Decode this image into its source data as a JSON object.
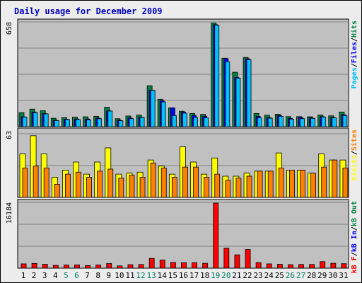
{
  "title": "Daily usage for December 2009",
  "colors": {
    "hits": "#008040",
    "files": "#0000ff",
    "pages": "#00c0ff",
    "visits": "#ffff00",
    "sites": "#ff8000",
    "kb_in": "#0000ff",
    "kb_out": "#008040",
    "kb_f": "#ff0000",
    "panel_bg": "#c0c0c0",
    "frame_bg": "#ececec",
    "day_default": "#000000",
    "day_weekend": "#00805c"
  },
  "chart_data": [
    {
      "type": "bar",
      "panel": "hits-files-pages",
      "title": "",
      "ymax_label": "658",
      "ylim": [
        0,
        658
      ],
      "legend_right": [
        "Pages",
        "/",
        "Files",
        "/",
        "Hits"
      ],
      "categories": [
        "1",
        "2",
        "3",
        "4",
        "5",
        "6",
        "7",
        "8",
        "9",
        "10",
        "11",
        "12",
        "13",
        "14",
        "15",
        "16",
        "17",
        "18",
        "19",
        "20",
        "21",
        "22",
        "23",
        "24",
        "25",
        "26",
        "27",
        "28",
        "29",
        "30",
        "31"
      ],
      "weekend_days": [
        5,
        6,
        12,
        13,
        19,
        20,
        26,
        27
      ],
      "series": [
        {
          "name": "Hits",
          "values": [
            88,
            110,
            100,
            53,
            57,
            60,
            62,
            65,
            122,
            50,
            67,
            73,
            257,
            172,
            118,
            97,
            83,
            77,
            651,
            430,
            342,
            435,
            83,
            72,
            78,
            63,
            63,
            62,
            73,
            68,
            92
          ]
        },
        {
          "name": "Files",
          "values": [
            62,
            92,
            82,
            40,
            47,
            48,
            48,
            53,
            100,
            40,
            55,
            60,
            230,
            163,
            118,
            92,
            70,
            65,
            641,
            427,
            310,
            427,
            65,
            57,
            70,
            52,
            57,
            55,
            63,
            58,
            75
          ]
        },
        {
          "name": "Pages",
          "values": [
            60,
            88,
            80,
            38,
            45,
            45,
            42,
            50,
            98,
            37,
            50,
            58,
            228,
            155,
            70,
            85,
            57,
            55,
            638,
            408,
            305,
            420,
            55,
            53,
            65,
            47,
            50,
            52,
            60,
            55,
            70
          ]
        }
      ]
    },
    {
      "type": "bar",
      "panel": "visits-sites",
      "title": "",
      "ymax_label": "63",
      "ylim": [
        0,
        63
      ],
      "legend_right": [
        "Visits",
        "/",
        "Sites"
      ],
      "categories": [
        "1",
        "2",
        "3",
        "4",
        "5",
        "6",
        "7",
        "8",
        "9",
        "10",
        "11",
        "12",
        "13",
        "14",
        "15",
        "16",
        "17",
        "18",
        "19",
        "20",
        "21",
        "22",
        "23",
        "24",
        "25",
        "26",
        "27",
        "28",
        "29",
        "30",
        "31"
      ],
      "series": [
        {
          "name": "Visits",
          "values": [
            43,
            61,
            43,
            20,
            27,
            35,
            23,
            35,
            49,
            23,
            24,
            25,
            37,
            31,
            23,
            50,
            35,
            23,
            39,
            21,
            21,
            24,
            26,
            26,
            44,
            27,
            27,
            24,
            43,
            37,
            37
          ]
        },
        {
          "name": "Sites",
          "values": [
            29,
            31,
            29,
            13,
            23,
            25,
            20,
            26,
            28,
            19,
            22,
            20,
            34,
            29,
            20,
            30,
            30,
            20,
            23,
            17,
            19,
            21,
            26,
            26,
            29,
            27,
            27,
            24,
            30,
            37,
            29
          ]
        }
      ]
    },
    {
      "type": "bar",
      "panel": "kbytes",
      "title": "",
      "ymax_label": "16184",
      "ylim": [
        0,
        16184
      ],
      "legend_right": [
        "kB F",
        "/",
        "kB In",
        "/",
        "kB Out"
      ],
      "categories": [
        "1",
        "2",
        "3",
        "4",
        "5",
        "6",
        "7",
        "8",
        "9",
        "10",
        "11",
        "12",
        "13",
        "14",
        "15",
        "16",
        "17",
        "18",
        "19",
        "20",
        "21",
        "22",
        "23",
        "24",
        "25",
        "26",
        "27",
        "28",
        "29",
        "30",
        "31"
      ],
      "series": [
        {
          "name": "kB F",
          "values": [
            1050,
            1150,
            950,
            680,
            770,
            800,
            640,
            770,
            1130,
            560,
            850,
            900,
            2400,
            2000,
            1400,
            1350,
            1350,
            1200,
            16000,
            4900,
            3280,
            4600,
            1380,
            1050,
            950,
            850,
            900,
            900,
            1600,
            1200,
            1100
          ]
        }
      ]
    }
  ]
}
